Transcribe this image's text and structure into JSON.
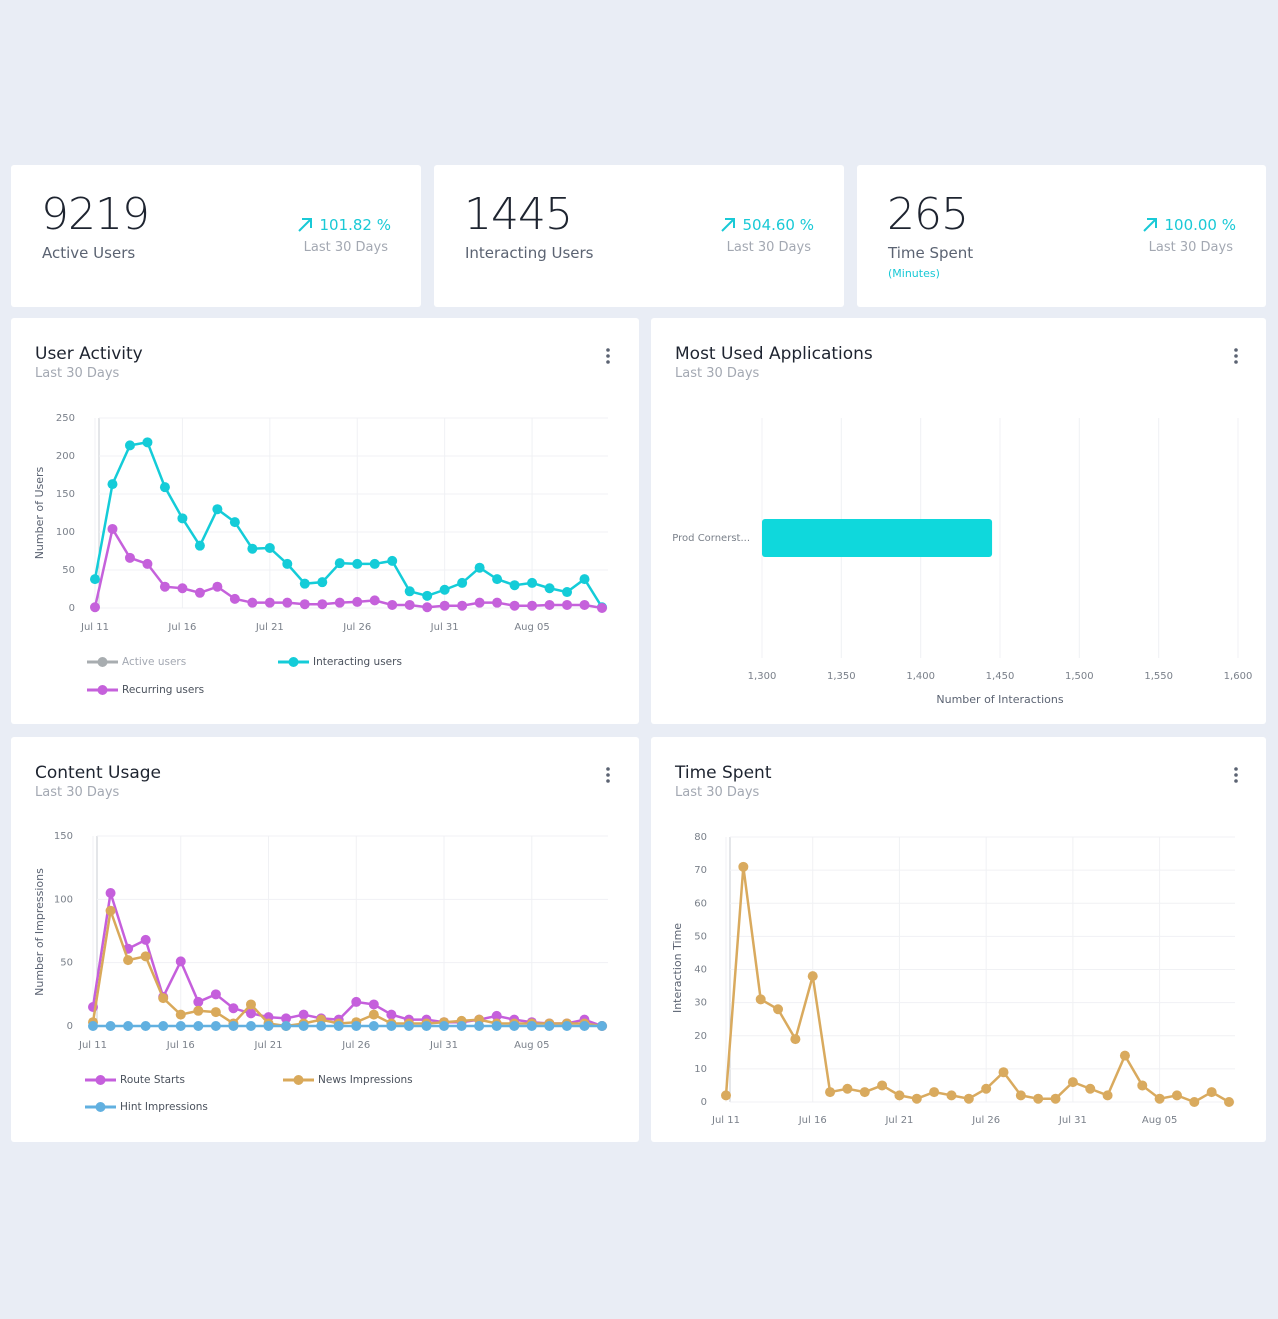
{
  "stats": [
    {
      "value": 9219,
      "label": "Active Users",
      "change": "101.82 %",
      "period": "Last 30 Days"
    },
    {
      "value": 1445,
      "label": "Interacting Users",
      "change": "504.60 %",
      "period": "Last 30 Days"
    },
    {
      "value": 265,
      "label": "Time Spent",
      "note": "(Minutes)",
      "change": "100.00 %",
      "period": "Last 30 Days"
    }
  ],
  "chart_data": [
    {
      "type": "line",
      "title": "User Activity",
      "subtitle": "Last 30 Days",
      "y_label": "Number of Users",
      "categories": [
        "Jul 11",
        null,
        null,
        null,
        null,
        "Jul 16",
        null,
        null,
        null,
        null,
        "Jul 21",
        null,
        null,
        null,
        null,
        "Jul 26",
        null,
        null,
        null,
        null,
        "Jul 31",
        null,
        null,
        null,
        null,
        "Aug 05",
        null,
        null,
        null,
        null
      ],
      "ylim": [
        0,
        250
      ],
      "yticks": [
        0,
        50,
        100,
        150,
        200,
        250
      ],
      "grid": true,
      "series": [
        {
          "name": "Active users",
          "color": "#a8adb0",
          "hidden": true
        },
        {
          "name": "Interacting users",
          "color": "#14ccd8",
          "values": [
            38,
            163,
            214,
            218,
            159,
            118,
            82,
            130,
            113,
            78,
            79,
            58,
            32,
            34,
            59,
            58,
            58,
            62,
            22,
            16,
            24,
            33,
            53,
            38,
            30,
            33,
            26,
            21,
            38,
            1
          ]
        },
        {
          "name": "Recurring users",
          "color": "#c561db",
          "values": [
            1,
            104,
            66,
            58,
            28,
            26,
            20,
            28,
            12,
            7,
            7,
            7,
            5,
            5,
            7,
            8,
            10,
            4,
            4,
            1,
            3,
            3,
            7,
            7,
            3,
            3,
            4,
            4,
            4,
            0
          ]
        }
      ]
    },
    {
      "type": "bar",
      "orientation": "horizontal",
      "title": "Most Used Applications",
      "subtitle": "Last 30 Days",
      "x_label": "Number of Interactions",
      "categories": [
        "Prod Cornerst..."
      ],
      "values": [
        1445
      ],
      "color": "#0fd8dc",
      "xlim": [
        1300,
        1600
      ],
      "xticks": [
        {
          "value": 1300,
          "label": "1,300"
        },
        {
          "value": 1350,
          "label": "1,350"
        },
        {
          "value": 1400,
          "label": "1,400"
        },
        {
          "value": 1450,
          "label": "1,450"
        },
        {
          "value": 1500,
          "label": "1,500"
        },
        {
          "value": 1550,
          "label": "1,550"
        },
        {
          "value": 1600,
          "label": "1,600"
        }
      ],
      "grid": true
    },
    {
      "type": "line",
      "title": "Content Usage",
      "subtitle": "Last 30 Days",
      "y_label": "Number of Impressions",
      "categories": [
        "Jul 11",
        null,
        null,
        null,
        null,
        "Jul 16",
        null,
        null,
        null,
        null,
        "Jul 21",
        null,
        null,
        null,
        null,
        "Jul 26",
        null,
        null,
        null,
        null,
        "Jul 31",
        null,
        null,
        null,
        null,
        "Aug 05",
        null,
        null,
        null,
        null
      ],
      "ylim": [
        0,
        150
      ],
      "yticks": [
        0,
        50,
        100,
        150
      ],
      "grid": true,
      "series": [
        {
          "name": "Route Starts",
          "color": "#c55fdc",
          "values": [
            15,
            105,
            61,
            68,
            23,
            51,
            19,
            25,
            14,
            10,
            7,
            6,
            9,
            6,
            5,
            19,
            17,
            9,
            5,
            5,
            3,
            3,
            5,
            8,
            5,
            3,
            2,
            2,
            5,
            0
          ]
        },
        {
          "name": "News Impressions",
          "color": "#d9a95a",
          "values": [
            3,
            91,
            52,
            55,
            22,
            9,
            12,
            11,
            2,
            17,
            2,
            0,
            2,
            5,
            2,
            3,
            9,
            2,
            2,
            2,
            3,
            4,
            5,
            2,
            2,
            2,
            2,
            2,
            2,
            0
          ]
        },
        {
          "name": "Hint Impressions",
          "color": "#61b0e0",
          "values": [
            0,
            0,
            0,
            0,
            0,
            0,
            0,
            0,
            0,
            0,
            0,
            0,
            0,
            0,
            0,
            0,
            0,
            0,
            0,
            0,
            0,
            0,
            0,
            0,
            0,
            0,
            0,
            0,
            0,
            0
          ]
        }
      ]
    },
    {
      "type": "line",
      "title": "Time Spent",
      "subtitle": "Last 30 Days",
      "y_label": "Interaction Time",
      "categories": [
        "Jul 11",
        null,
        null,
        null,
        null,
        "Jul 16",
        null,
        null,
        null,
        null,
        "Jul 21",
        null,
        null,
        null,
        null,
        "Jul 26",
        null,
        null,
        null,
        null,
        "Jul 31",
        null,
        null,
        null,
        null,
        "Aug 05",
        null,
        null,
        null,
        null
      ],
      "ylim": [
        0,
        80
      ],
      "yticks": [
        0,
        10,
        20,
        30,
        40,
        50,
        60,
        70,
        80
      ],
      "grid": true,
      "series": [
        {
          "color": "#d9aa5e",
          "values": [
            2,
            71,
            31,
            28,
            19,
            38,
            3,
            4,
            3,
            5,
            2,
            1,
            3,
            2,
            1,
            4,
            9,
            2,
            1,
            1,
            6,
            4,
            2,
            14,
            5,
            1,
            2,
            0,
            3,
            0
          ]
        }
      ]
    }
  ]
}
